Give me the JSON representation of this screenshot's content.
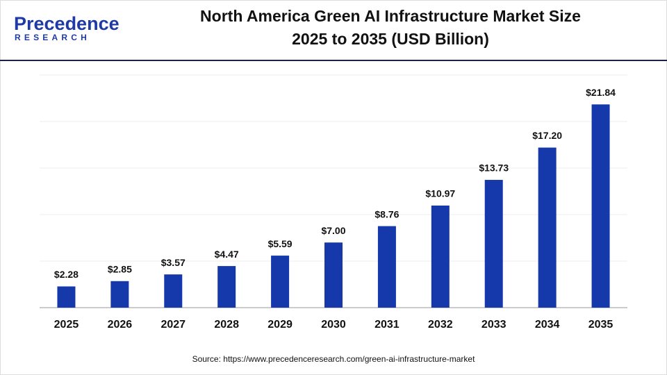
{
  "logo": {
    "name": "Precedence",
    "tagline": "RESEARCH"
  },
  "chart_data": {
    "type": "bar",
    "title": "North America Green AI Infrastructure Market Size",
    "subtitle": "2025 to 2035 (USD Billion)",
    "categories": [
      "2025",
      "2026",
      "2027",
      "2028",
      "2029",
      "2030",
      "2031",
      "2032",
      "2033",
      "2034",
      "2035"
    ],
    "values": [
      2.28,
      2.85,
      3.57,
      4.47,
      5.59,
      7.0,
      8.76,
      10.97,
      13.73,
      17.2,
      21.84
    ],
    "value_labels": [
      "$2.28",
      "$2.85",
      "$3.57",
      "$4.47",
      "$5.59",
      "$7.00",
      "$8.76",
      "$10.97",
      "$13.73",
      "$17.20",
      "$21.84"
    ],
    "color": "#1539ab",
    "ylim": [
      0,
      25
    ],
    "yticks": [
      0,
      5,
      10,
      15,
      20,
      25
    ],
    "grid": true,
    "source": "Source: https://www.precedenceresearch.com/green-ai-infrastructure-market"
  }
}
